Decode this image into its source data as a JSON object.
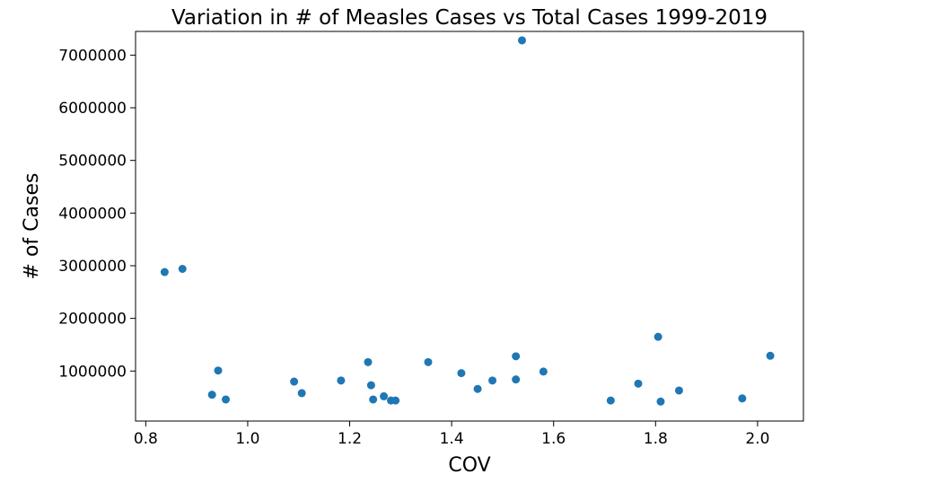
{
  "chart_data": {
    "type": "scatter",
    "title": "Variation in # of Measles Cases vs Total Cases 1999-2019",
    "xlabel": "COV",
    "ylabel": "# of Cases",
    "xlim": [
      0.78,
      2.09
    ],
    "ylim": [
      50000,
      7450000
    ],
    "x_ticks": [
      0.8,
      1.0,
      1.2,
      1.4,
      1.6,
      1.8,
      2.0
    ],
    "x_tick_labels": [
      "0.8",
      "1.0",
      "1.2",
      "1.4",
      "1.6",
      "1.8",
      "2.0"
    ],
    "y_ticks": [
      1000000,
      2000000,
      3000000,
      4000000,
      5000000,
      6000000,
      7000000
    ],
    "y_tick_labels": [
      "1000000",
      "2000000",
      "3000000",
      "4000000",
      "5000000",
      "6000000",
      "7000000"
    ],
    "grid": false,
    "legend": "none",
    "marker_color": "#1f77b4",
    "points": [
      {
        "x": 0.837,
        "y": 2880000
      },
      {
        "x": 0.872,
        "y": 2940000
      },
      {
        "x": 0.93,
        "y": 550000
      },
      {
        "x": 0.942,
        "y": 1010000
      },
      {
        "x": 0.957,
        "y": 460000
      },
      {
        "x": 1.091,
        "y": 800000
      },
      {
        "x": 1.106,
        "y": 580000
      },
      {
        "x": 1.183,
        "y": 820000
      },
      {
        "x": 1.236,
        "y": 1170000
      },
      {
        "x": 1.242,
        "y": 730000
      },
      {
        "x": 1.246,
        "y": 460000
      },
      {
        "x": 1.267,
        "y": 520000
      },
      {
        "x": 1.281,
        "y": 440000
      },
      {
        "x": 1.29,
        "y": 440000
      },
      {
        "x": 1.354,
        "y": 1170000
      },
      {
        "x": 1.419,
        "y": 960000
      },
      {
        "x": 1.451,
        "y": 660000
      },
      {
        "x": 1.48,
        "y": 820000
      },
      {
        "x": 1.526,
        "y": 1280000
      },
      {
        "x": 1.526,
        "y": 840000
      },
      {
        "x": 1.538,
        "y": 7280000
      },
      {
        "x": 1.58,
        "y": 990000
      },
      {
        "x": 1.712,
        "y": 440000
      },
      {
        "x": 1.766,
        "y": 760000
      },
      {
        "x": 1.805,
        "y": 1650000
      },
      {
        "x": 1.81,
        "y": 420000
      },
      {
        "x": 1.846,
        "y": 630000
      },
      {
        "x": 1.97,
        "y": 480000
      },
      {
        "x": 2.025,
        "y": 1290000
      }
    ]
  }
}
